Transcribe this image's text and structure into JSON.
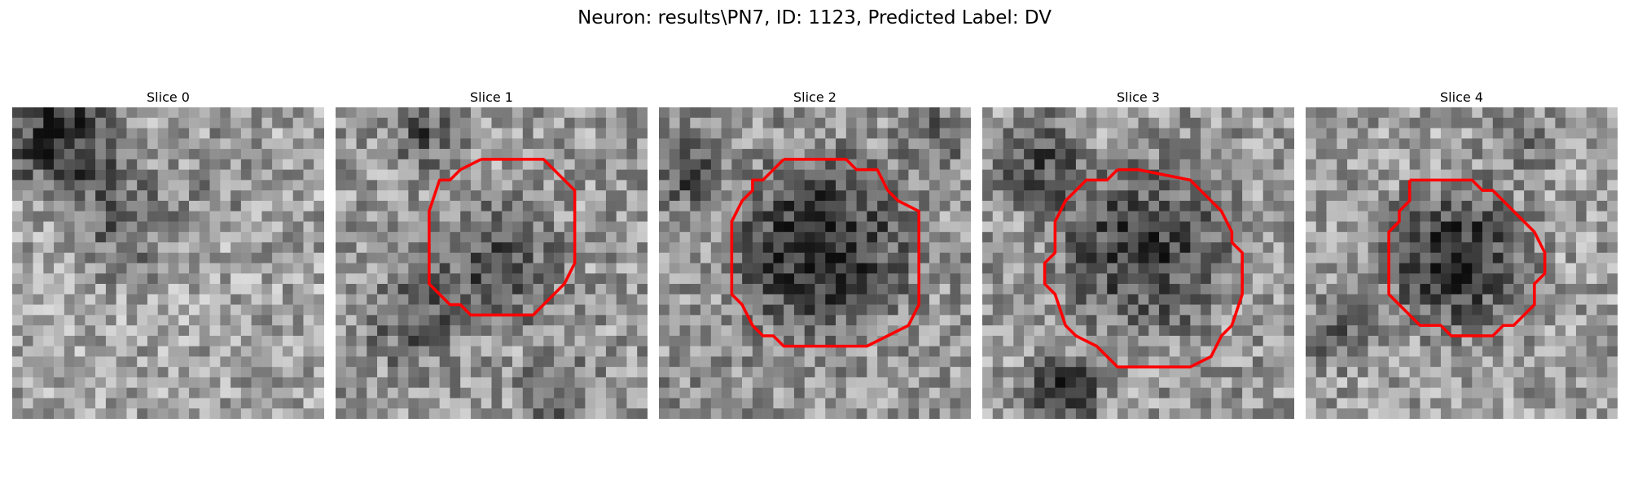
{
  "figure": {
    "title": "Neuron: results\\PN7, ID: 1123, Predicted Label: DV"
  },
  "slices": [
    {
      "title": "Slice 0",
      "has_contour": false
    },
    {
      "title": "Slice 1",
      "has_contour": true
    },
    {
      "title": "Slice 2",
      "has_contour": true
    },
    {
      "title": "Slice 3",
      "has_contour": true
    },
    {
      "title": "Slice 4",
      "has_contour": true
    }
  ],
  "style": {
    "contour_color": "#ff0000"
  }
}
